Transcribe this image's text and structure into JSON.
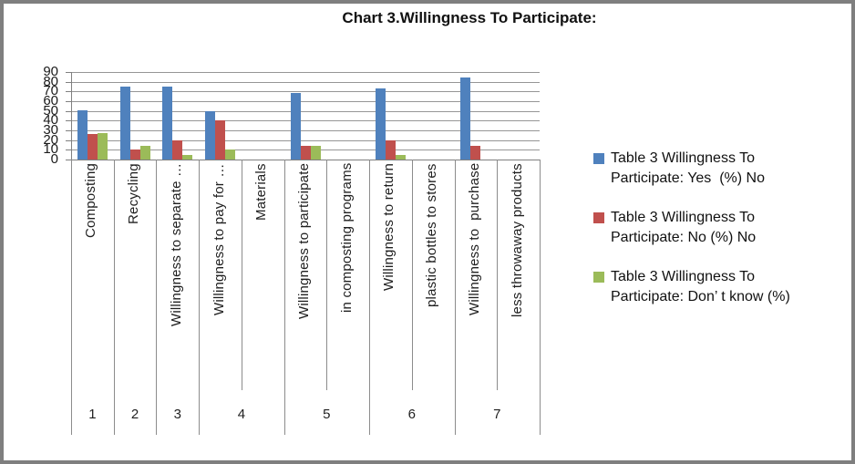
{
  "chart_data": {
    "type": "bar",
    "title": "Chart 3.Willingness To Participate:",
    "xlabel": "",
    "ylabel": "",
    "ylim": [
      0,
      90
    ],
    "ytick_step": 10,
    "yticks": [
      "90",
      "80",
      "70",
      "60",
      "50",
      "40",
      "30",
      "20",
      "10",
      "0"
    ],
    "grid": true,
    "legend_position": "right",
    "axis_labels": [
      "Composting",
      "Recycling",
      "Willingness to separate …",
      "Willingness to pay for …",
      "Materials",
      "Willingness to participate",
      "in composting programs",
      "Willingness to return",
      "plastic bottles to stores",
      "Willingness to  purchase",
      "less throwaway products"
    ],
    "group_numbers": [
      "1",
      "2",
      "3",
      "4",
      "5",
      "6",
      "7"
    ],
    "group_column_spans": [
      [
        0,
        1
      ],
      [
        1,
        2
      ],
      [
        2,
        3
      ],
      [
        3,
        5
      ],
      [
        5,
        7
      ],
      [
        7,
        9
      ],
      [
        9,
        11
      ]
    ],
    "bar_column_for_group": [
      0,
      1,
      2,
      3,
      5,
      7,
      9
    ],
    "series": [
      {
        "name": "Table 3 Willingness To Participate: Yes  (%) No",
        "color": "#4f81bd",
        "values": [
          51,
          75,
          75,
          50,
          68,
          73,
          84
        ]
      },
      {
        "name": "Table 3 Willingness To Participate: No (%) No",
        "color": "#c0504d",
        "values": [
          26,
          10,
          20,
          40,
          14,
          20,
          14
        ]
      },
      {
        "name": "Table 3 Willingness To Participate: Don' t know (%)",
        "color": "#9bbb59",
        "values": [
          27,
          14,
          5,
          10,
          14,
          5,
          0
        ]
      }
    ]
  },
  "legend": {
    "items": [
      {
        "color": "#4f81bd",
        "lines": [
          "Table 3 Willingness To",
          "Participate: Yes  (%) No"
        ]
      },
      {
        "color": "#c0504d",
        "lines": [
          "Table 3 Willingness To",
          "Participate: No (%) No"
        ]
      },
      {
        "color": "#9bbb59",
        "lines": [
          "Table 3 Willingness To",
          "Participate: Don’ t know (%)"
        ]
      }
    ]
  }
}
